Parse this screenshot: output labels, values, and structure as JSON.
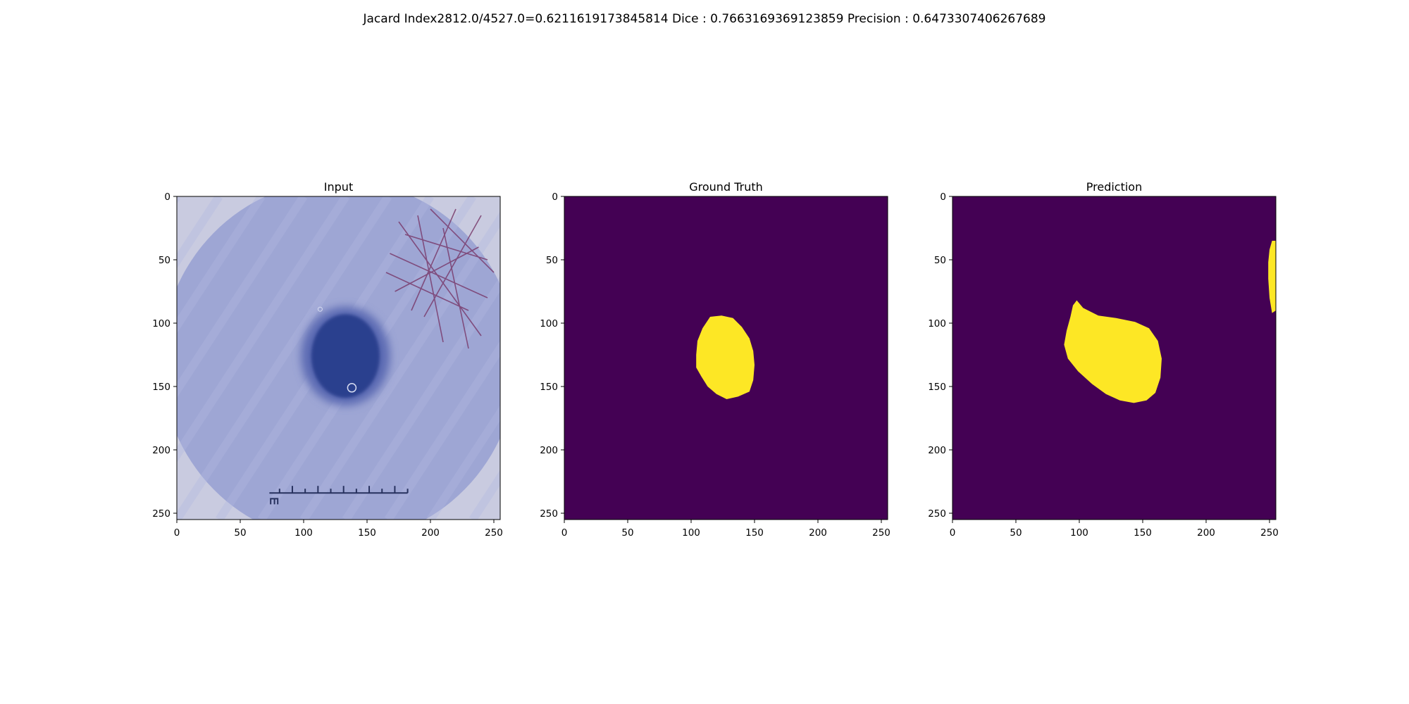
{
  "figure": {
    "suptitle": "Jacard Index2812.0/4527.0=0.6211619173845814 Dice : 0.7663169369123859 Precision : 0.6473307406267689"
  },
  "chart_data": [
    {
      "type": "heatmap",
      "title": "Input",
      "xlabel": "",
      "ylabel": "",
      "xlim": [
        0,
        255
      ],
      "ylim": [
        255,
        0
      ],
      "xticks": [
        0,
        50,
        100,
        150,
        200,
        250
      ],
      "yticks": [
        0,
        50,
        100,
        150,
        200,
        250
      ],
      "grid": false,
      "image": {
        "background": "#9ea6d4",
        "lesion": {
          "cx": 133,
          "cy": 126,
          "rx": 27,
          "ry": 33,
          "color": "#2a3f8e"
        },
        "hair": {
          "cx": 205,
          "cy": 62,
          "color": "#7a3d6e"
        },
        "ruler": {
          "x0": 73,
          "x1": 182,
          "y": 234,
          "color": "#27315e"
        }
      }
    },
    {
      "type": "heatmap",
      "title": "Ground Truth",
      "xlabel": "",
      "ylabel": "",
      "xlim": [
        0,
        255
      ],
      "ylim": [
        255,
        0
      ],
      "xticks": [
        0,
        50,
        100,
        150,
        200,
        250
      ],
      "yticks": [
        0,
        50,
        100,
        150,
        200,
        250
      ],
      "grid": false,
      "background_color": "#440154",
      "mask_color": "#fde725",
      "regions": [
        {
          "outline": [
            [
              115,
              95
            ],
            [
              124,
              94
            ],
            [
              133,
              96
            ],
            [
              140,
              103
            ],
            [
              146,
              112
            ],
            [
              149,
              122
            ],
            [
              150,
              133
            ],
            [
              149,
              145
            ],
            [
              146,
              154
            ],
            [
              137,
              158
            ],
            [
              128,
              160
            ],
            [
              120,
              156
            ],
            [
              113,
              150
            ],
            [
              108,
              142
            ],
            [
              104,
              135
            ],
            [
              104,
              125
            ],
            [
              105,
              114
            ],
            [
              109,
              104
            ]
          ]
        }
      ]
    },
    {
      "type": "heatmap",
      "title": "Prediction",
      "xlabel": "",
      "ylabel": "",
      "xlim": [
        0,
        255
      ],
      "ylim": [
        255,
        0
      ],
      "xticks": [
        0,
        50,
        100,
        150,
        200,
        250
      ],
      "yticks": [
        0,
        50,
        100,
        150,
        200,
        250
      ],
      "grid": false,
      "background_color": "#440154",
      "mask_color": "#fde725",
      "regions": [
        {
          "outline": [
            [
              98,
              82
            ],
            [
              103,
              88
            ],
            [
              115,
              94
            ],
            [
              129,
              96
            ],
            [
              144,
              99
            ],
            [
              155,
              104
            ],
            [
              162,
              114
            ],
            [
              165,
              128
            ],
            [
              164,
              143
            ],
            [
              160,
              155
            ],
            [
              153,
              161
            ],
            [
              143,
              163
            ],
            [
              132,
              161
            ],
            [
              121,
              156
            ],
            [
              110,
              148
            ],
            [
              99,
              138
            ],
            [
              91,
              128
            ],
            [
              88,
              117
            ],
            [
              90,
              106
            ],
            [
              93,
              95
            ],
            [
              95,
              86
            ]
          ]
        },
        {
          "outline": [
            [
              252,
              35
            ],
            [
              255,
              35
            ],
            [
              255,
              90
            ],
            [
              252,
              92
            ],
            [
              250,
              80
            ],
            [
              249,
              65
            ],
            [
              249,
              52
            ],
            [
              250,
              42
            ]
          ]
        }
      ]
    }
  ]
}
